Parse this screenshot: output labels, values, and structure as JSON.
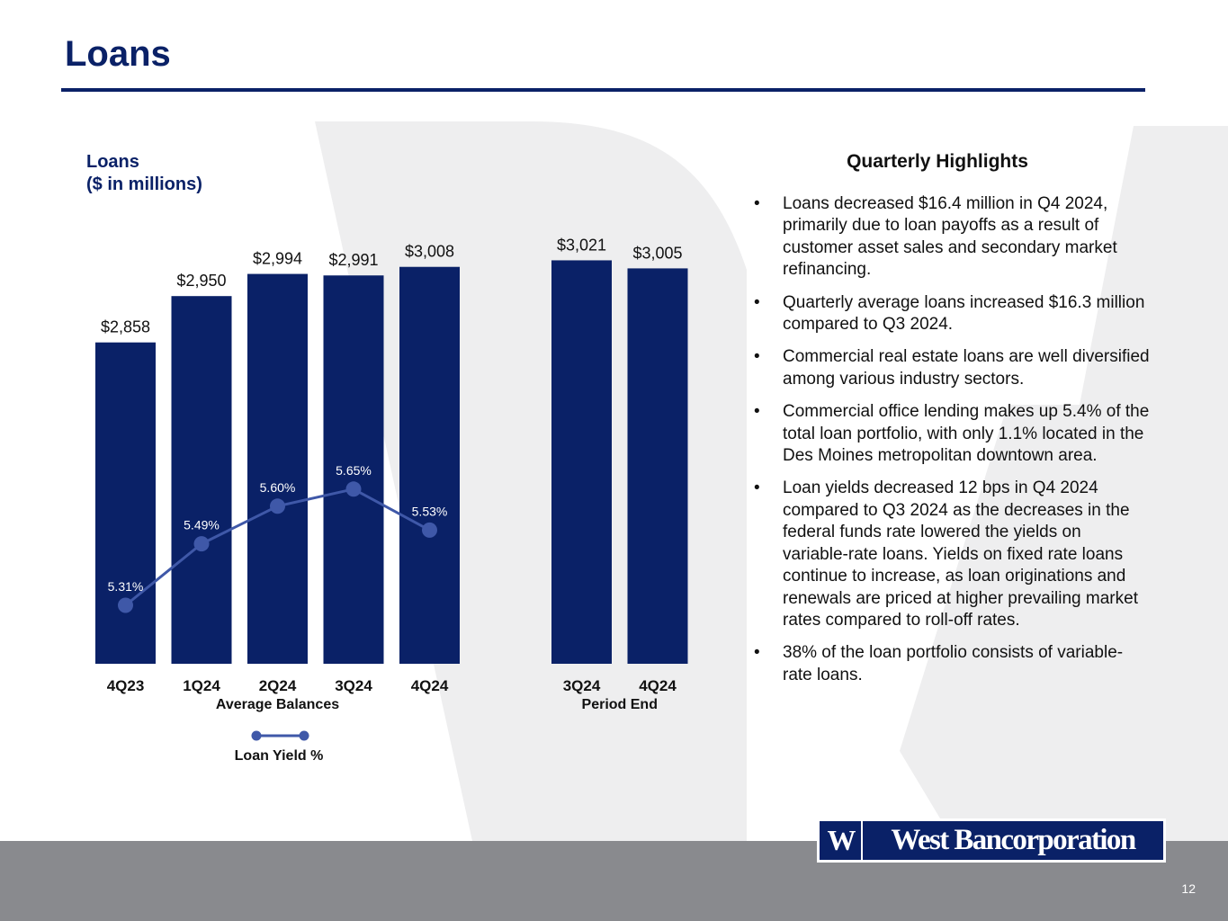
{
  "slide": {
    "title": "Loans",
    "page_number": "12",
    "colors": {
      "navy": "#0a2167",
      "line": "#3f58a8",
      "footer": "#898a8e",
      "watermark": "#eeeeef"
    }
  },
  "chart_data": {
    "type": "bar",
    "title": "Loans",
    "subtitle": "($ in millions)",
    "ylim": [
      0,
      3200
    ],
    "groups": [
      {
        "label": "Average Balances",
        "categories": [
          "4Q23",
          "1Q24",
          "2Q24",
          "3Q24",
          "4Q24"
        ],
        "values": [
          2858,
          2950,
          2994,
          2991,
          3008
        ],
        "value_labels": [
          "$2,858",
          "$2,950",
          "$2,994",
          "$2,991",
          "$3,008"
        ]
      },
      {
        "label": "Period End",
        "categories": [
          "3Q24",
          "4Q24"
        ],
        "values": [
          3021,
          3005
        ],
        "value_labels": [
          "$3,021",
          "$3,005"
        ]
      }
    ],
    "line_series": {
      "name": "Loan Yield %",
      "categories": [
        "4Q23",
        "1Q24",
        "2Q24",
        "3Q24",
        "4Q24"
      ],
      "values": [
        5.31,
        5.49,
        5.6,
        5.65,
        5.53
      ],
      "labels": [
        "5.31%",
        "5.49%",
        "5.60%",
        "5.65%",
        "5.53%"
      ]
    },
    "legend": {
      "placement": "bottom",
      "label": "Loan Yield %"
    },
    "grid": false
  },
  "highlights": {
    "title": "Quarterly Highlights",
    "items": [
      "Loans decreased $16.4 million in Q4 2024, primarily due to loan payoffs as a result of customer asset sales and secondary market refinancing.",
      "Quarterly average loans increased $16.3 million compared to Q3 2024.",
      "Commercial real estate loans are well diversified among various industry sectors.",
      "Commercial office lending makes up 5.4% of the total loan portfolio, with only 1.1% located in the Des Moines metropolitan downtown area.",
      "Loan yields decreased 12 bps in Q4 2024 compared to Q3 2024 as the decreases in the federal funds rate lowered the yields on variable-rate loans. Yields on fixed rate loans continue to increase, as loan originations and renewals are priced at higher prevailing market rates compared to roll-off rates.",
      "38% of the loan portfolio consists of variable-rate loans."
    ]
  },
  "logo": {
    "mark": "W",
    "text": "West Bancorporation"
  }
}
